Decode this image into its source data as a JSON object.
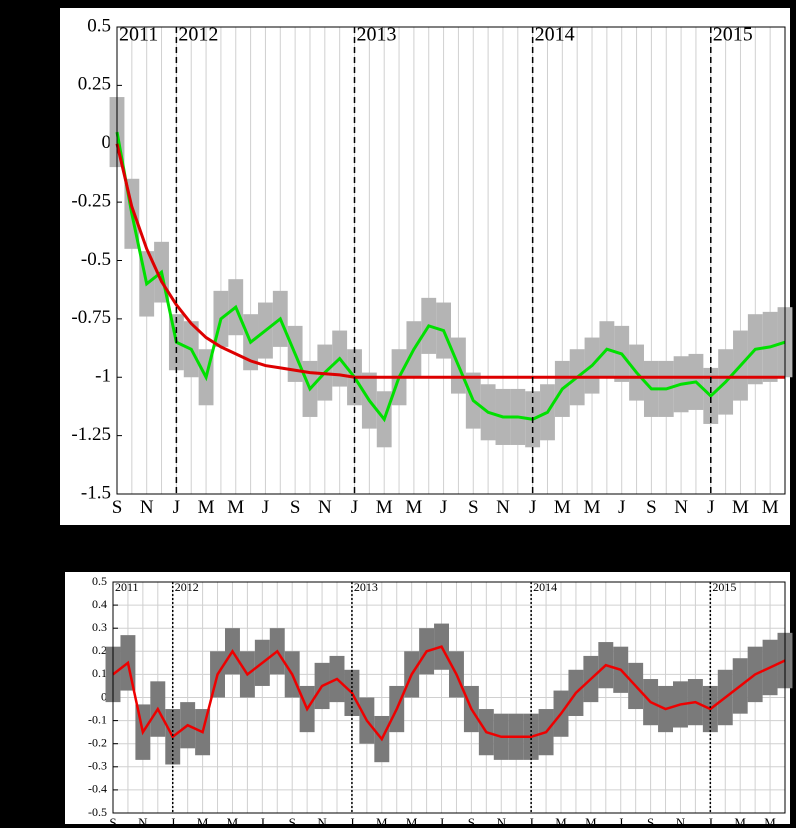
{
  "chart_data": [
    {
      "type": "line",
      "categories": [
        "S",
        null,
        "N",
        null,
        "J",
        null,
        "M",
        null,
        "M",
        null,
        "J",
        null,
        "S",
        null,
        "N",
        null,
        "J",
        null,
        "M",
        null,
        "M",
        null,
        "J",
        null,
        "S",
        null,
        "N",
        null,
        "J",
        null,
        "M",
        null,
        "M",
        null,
        "J",
        null,
        "S",
        null,
        "N",
        null,
        "J",
        null,
        "M",
        null,
        "M",
        null
      ],
      "ylim": [
        -1.5,
        0.5
      ],
      "yticks": [
        -1.5,
        -1.25,
        -1,
        -0.75,
        -0.5,
        -0.25,
        0,
        0.25,
        0.5
      ],
      "xgrid": true,
      "ygrid": false,
      "year_line_style": "dashed",
      "annotations": [
        {
          "text": "2011",
          "at": 0
        },
        {
          "text": "2012",
          "at": 4
        },
        {
          "text": "2013",
          "at": 16
        },
        {
          "text": "2014",
          "at": 28
        },
        {
          "text": "2015",
          "at": 40
        }
      ],
      "series": [
        {
          "color": "#00e000",
          "error_color": "#b4b4b4",
          "values": [
            0.05,
            -0.3,
            -0.6,
            -0.55,
            -0.85,
            -0.88,
            -1.0,
            -0.75,
            -0.7,
            -0.85,
            -0.8,
            -0.75,
            -0.9,
            -1.05,
            -0.98,
            -0.92,
            -1.0,
            -1.1,
            -1.18,
            -1.0,
            -0.88,
            -0.78,
            -0.8,
            -0.95,
            -1.1,
            -1.15,
            -1.17,
            -1.17,
            -1.18,
            -1.15,
            -1.05,
            -1.0,
            -0.95,
            -0.88,
            -0.9,
            -0.98,
            -1.05,
            -1.05,
            -1.03,
            -1.02,
            -1.08,
            -1.02,
            -0.95,
            -0.88,
            -0.87,
            -0.85
          ],
          "error": [
            0.15,
            0.15,
            0.14,
            0.13,
            0.12,
            0.12,
            0.12,
            0.12,
            0.12,
            0.12,
            0.12,
            0.12,
            0.12,
            0.12,
            0.12,
            0.12,
            0.12,
            0.12,
            0.12,
            0.12,
            0.12,
            0.12,
            0.12,
            0.12,
            0.12,
            0.12,
            0.12,
            0.12,
            0.12,
            0.12,
            0.12,
            0.12,
            0.12,
            0.12,
            0.12,
            0.12,
            0.12,
            0.12,
            0.12,
            0.12,
            0.12,
            0.14,
            0.15,
            0.15,
            0.15,
            0.15
          ]
        },
        {
          "color": "#dd0000",
          "values": [
            0,
            -0.27,
            -0.45,
            -0.59,
            -0.69,
            -0.77,
            -0.83,
            -0.87,
            -0.9,
            -0.93,
            -0.95,
            -0.96,
            -0.97,
            -0.98,
            -0.985,
            -0.99,
            -1,
            -1,
            -1,
            -1,
            -1,
            -1,
            -1,
            -1,
            -1,
            -1,
            -1,
            -1,
            -1,
            -1,
            -1,
            -1,
            -1,
            -1,
            -1,
            -1,
            -1,
            -1,
            -1,
            -1,
            -1,
            -1,
            -1,
            -1,
            -1,
            -1
          ]
        }
      ]
    },
    {
      "type": "line",
      "categories": [
        "S",
        null,
        "N",
        null,
        "J",
        null,
        "M",
        null,
        "M",
        null,
        "J",
        null,
        "S",
        null,
        "N",
        null,
        "J",
        null,
        "M",
        null,
        "M",
        null,
        "J",
        null,
        "S",
        null,
        "N",
        null,
        "J",
        null,
        "M",
        null,
        "M",
        null,
        "J",
        null,
        "S",
        null,
        "N",
        null,
        "J",
        null,
        "M",
        null,
        "M",
        null
      ],
      "ylim": [
        -0.5,
        0.5
      ],
      "yticks": [
        -0.5,
        -0.4,
        -0.3,
        -0.2,
        -0.1,
        0,
        0.1,
        0.2,
        0.3,
        0.4,
        0.5
      ],
      "xgrid": true,
      "ygrid": true,
      "year_line_style": "dotted",
      "annotations": [
        {
          "text": "2011",
          "at": 0
        },
        {
          "text": "2012",
          "at": 4
        },
        {
          "text": "2013",
          "at": 16
        },
        {
          "text": "2014",
          "at": 28
        },
        {
          "text": "2015",
          "at": 40
        }
      ],
      "series": [
        {
          "color": "#ee0000",
          "error_color": "#7a7a7a",
          "values": [
            0.1,
            0.15,
            -0.15,
            -0.05,
            -0.17,
            -0.12,
            -0.15,
            0.1,
            0.2,
            0.1,
            0.15,
            0.2,
            0.1,
            -0.05,
            0.05,
            0.08,
            0.02,
            -0.1,
            -0.18,
            -0.05,
            0.1,
            0.2,
            0.22,
            0.1,
            -0.05,
            -0.15,
            -0.17,
            -0.17,
            -0.17,
            -0.15,
            -0.07,
            0.02,
            0.08,
            0.14,
            0.12,
            0.05,
            -0.02,
            -0.05,
            -0.03,
            -0.02,
            -0.05,
            0,
            0.05,
            0.1,
            0.13,
            0.16
          ],
          "error": [
            0.12,
            0.12,
            0.12,
            0.12,
            0.12,
            0.1,
            0.1,
            0.1,
            0.1,
            0.1,
            0.1,
            0.1,
            0.1,
            0.1,
            0.1,
            0.1,
            0.1,
            0.1,
            0.1,
            0.1,
            0.1,
            0.1,
            0.1,
            0.1,
            0.1,
            0.1,
            0.1,
            0.1,
            0.1,
            0.1,
            0.1,
            0.1,
            0.1,
            0.1,
            0.1,
            0.1,
            0.1,
            0.1,
            0.1,
            0.1,
            0.1,
            0.12,
            0.12,
            0.12,
            0.12,
            0.12
          ]
        }
      ]
    }
  ]
}
